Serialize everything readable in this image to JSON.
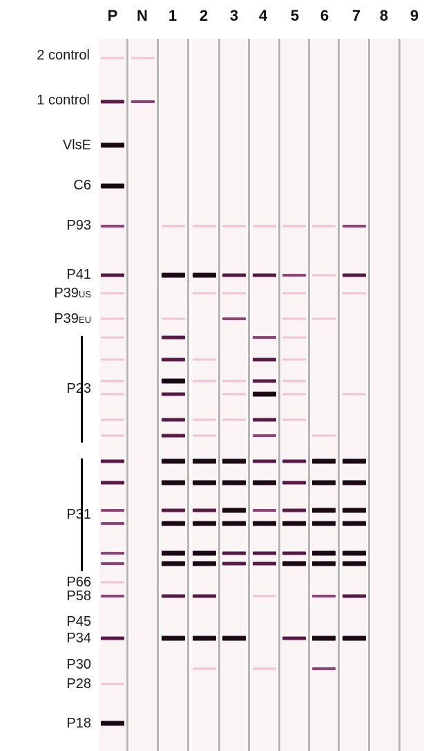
{
  "lanes": [
    "P",
    "N",
    "1",
    "2",
    "3",
    "4",
    "5",
    "6",
    "7",
    "8",
    "9"
  ],
  "rows": [
    {
      "key": "ctrl2",
      "label": "2 control",
      "sub": ""
    },
    {
      "key": "ctrl1",
      "label": "1 control",
      "sub": ""
    },
    {
      "key": "vlse",
      "label": "VlsE",
      "sub": ""
    },
    {
      "key": "c6",
      "label": "C6",
      "sub": ""
    },
    {
      "key": "p93",
      "label": "P93",
      "sub": ""
    },
    {
      "key": "p41",
      "label": "P41",
      "sub": ""
    },
    {
      "key": "p39us",
      "label": "P39",
      "sub": "US"
    },
    {
      "key": "p39eu",
      "label": "P39",
      "sub": "EU"
    },
    {
      "key": "p23",
      "label": "P23",
      "sub": ""
    },
    {
      "key": "p31",
      "label": "P31",
      "sub": ""
    },
    {
      "key": "p66",
      "label": "P66",
      "sub": ""
    },
    {
      "key": "p58",
      "label": "P58",
      "sub": ""
    },
    {
      "key": "p45",
      "label": "P45",
      "sub": ""
    },
    {
      "key": "p34",
      "label": "P34",
      "sub": ""
    },
    {
      "key": "p30",
      "label": "P30",
      "sub": ""
    },
    {
      "key": "p28",
      "label": "P28",
      "sub": ""
    },
    {
      "key": "p18",
      "label": "P18",
      "sub": ""
    }
  ],
  "colors": {
    "dark": "#1a0a14",
    "strong": "#5a1846",
    "medium": "#96407a",
    "faint": "#f0c2d6",
    "strip": "#fbf4f4",
    "divider": "#b9b3b3"
  }
}
